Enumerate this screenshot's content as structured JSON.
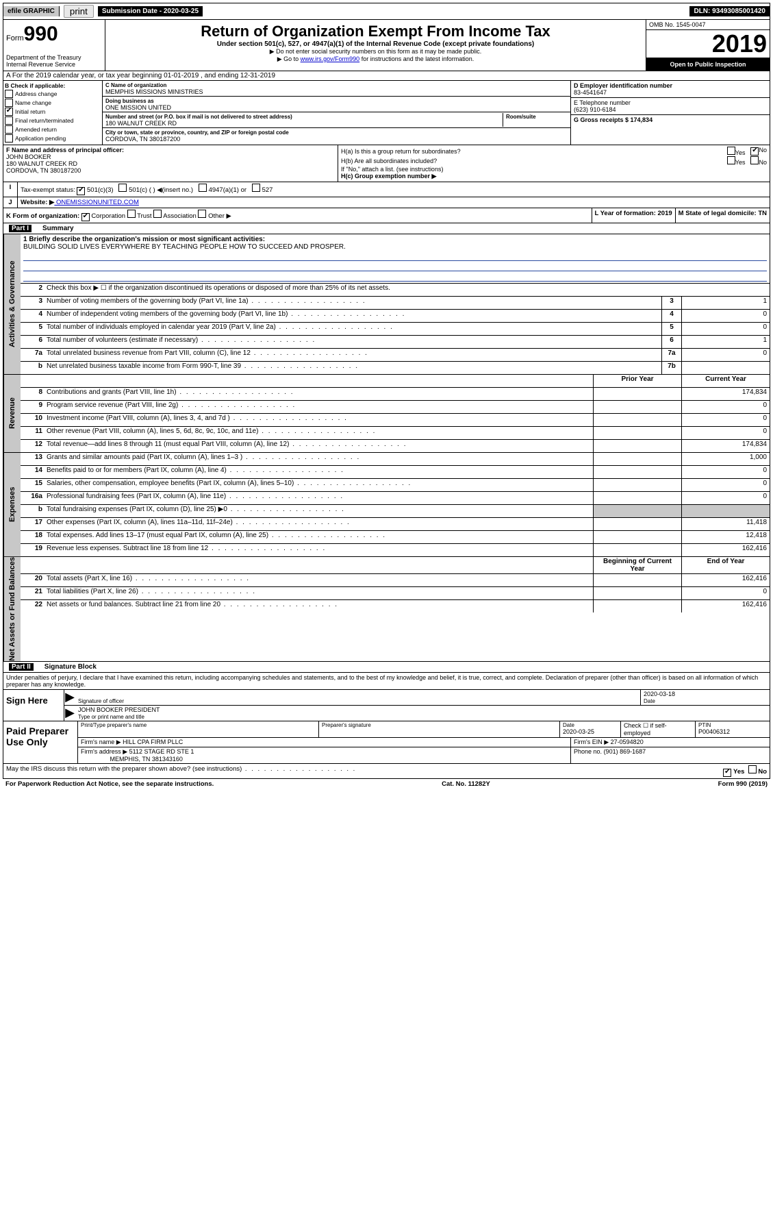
{
  "top": {
    "efile": "efile GRAPHIC",
    "print": "print",
    "sub_label": "Submission Date - 2020-03-25",
    "dln": "DLN: 93493085001420"
  },
  "hdr": {
    "form": "Form",
    "num": "990",
    "dept": "Department of the Treasury Internal Revenue Service",
    "title": "Return of Organization Exempt From Income Tax",
    "sub": "Under section 501(c), 527, or 4947(a)(1) of the Internal Revenue Code (except private foundations)",
    "note1": "▶ Do not enter social security numbers on this form as it may be made public.",
    "note2a": "▶ Go to ",
    "note2link": "www.irs.gov/Form990",
    "note2b": " for instructions and the latest information.",
    "omb": "OMB No. 1545-0047",
    "year": "2019",
    "otp": "Open to Public Inspection"
  },
  "rowA": "A For the 2019 calendar year, or tax year beginning 01-01-2019    , and ending 12-31-2019",
  "entB": {
    "hdr": "B Check if applicable:",
    "items": [
      "Address change",
      "Name change",
      "Initial return",
      "Final return/terminated",
      "Amended return",
      "Application pending"
    ],
    "checked": [
      false,
      false,
      true,
      false,
      false,
      false
    ]
  },
  "entC": {
    "name_lbl": "C Name of organization",
    "name": "MEMPHIS MISSIONS MINISTRIES",
    "dba_lbl": "Doing business as",
    "dba": "ONE MISSION UNITED",
    "addr_lbl": "Number and street (or P.O. box if mail is not delivered to street address)",
    "suite_lbl": "Room/suite",
    "addr": "180 WALNUT CREEK RD",
    "city_lbl": "City or town, state or province, country, and ZIP or foreign postal code",
    "city": "CORDOVA, TN  380187200"
  },
  "entR": {
    "d_lbl": "D Employer identification number",
    "d_val": "83-4541647",
    "e_lbl": "E Telephone number",
    "e_val": "(623) 910-6184",
    "g_lbl": "G Gross receipts $ 174,834"
  },
  "fhi": {
    "f_lbl": "F  Name and address of principal officer:",
    "f_name": "JOHN BOOKER",
    "f_addr": "180 WALNUT CREEK RD\nCORDOVA, TN  380187200",
    "ha": "H(a)  Is this a group return for subordinates?",
    "hb": "H(b)  Are all subordinates included?",
    "hb_note": "If \"No,\" attach a list. (see instructions)",
    "hc": "H(c)  Group exemption number ▶",
    "yes": "Yes",
    "no": "No"
  },
  "rowI": {
    "lbl": "Tax-exempt status:",
    "o1": "501(c)(3)",
    "o2": "501(c) (   ) ◀(insert no.)",
    "o3": "4947(a)(1) or",
    "o4": "527"
  },
  "rowJ": {
    "lbl": "Website: ▶",
    "val": "  ONEMISSIONUNITED.COM"
  },
  "rowK": {
    "l": "K Form of organization:",
    "corp": "Corporation",
    "trust": "Trust",
    "assoc": "Association",
    "other": "Other ▶",
    "ly": "L Year of formation: 2019",
    "ms": "M State of legal domicile: TN"
  },
  "p1": {
    "num": "Part I",
    "title": "Summary"
  },
  "p1r": {
    "r1_lbl": "1  Briefly describe the organization's mission or most significant activities:",
    "r1_val": "BUILDING SOLID LIVES EVERYWHERE BY TEACHING PEOPLE HOW TO SUCCEED AND PROSPER.",
    "r2": "Check this box ▶ ☐  if the organization discontinued its operations or disposed of more than 25% of its net assets.",
    "rows": [
      {
        "n": "3",
        "d": "Number of voting members of the governing body (Part VI, line 1a)",
        "b": "3",
        "v": "1"
      },
      {
        "n": "4",
        "d": "Number of independent voting members of the governing body (Part VI, line 1b)",
        "b": "4",
        "v": "0"
      },
      {
        "n": "5",
        "d": "Total number of individuals employed in calendar year 2019 (Part V, line 2a)",
        "b": "5",
        "v": "0"
      },
      {
        "n": "6",
        "d": "Total number of volunteers (estimate if necessary)",
        "b": "6",
        "v": "1"
      },
      {
        "n": "7a",
        "d": "Total unrelated business revenue from Part VIII, column (C), line 12",
        "b": "7a",
        "v": "0"
      },
      {
        "n": "b",
        "d": "Net unrelated business taxable income from Form 990-T, line 39",
        "b": "7b",
        "v": ""
      }
    ],
    "hdr_prior": "Prior Year",
    "hdr_curr": "Current Year",
    "rev": [
      {
        "n": "8",
        "d": "Contributions and grants (Part VIII, line 1h)",
        "p": "",
        "c": "174,834"
      },
      {
        "n": "9",
        "d": "Program service revenue (Part VIII, line 2g)",
        "p": "",
        "c": "0"
      },
      {
        "n": "10",
        "d": "Investment income (Part VIII, column (A), lines 3, 4, and 7d )",
        "p": "",
        "c": "0"
      },
      {
        "n": "11",
        "d": "Other revenue (Part VIII, column (A), lines 5, 6d, 8c, 9c, 10c, and 11e)",
        "p": "",
        "c": "0"
      },
      {
        "n": "12",
        "d": "Total revenue—add lines 8 through 11 (must equal Part VIII, column (A), line 12)",
        "p": "",
        "c": "174,834"
      }
    ],
    "exp": [
      {
        "n": "13",
        "d": "Grants and similar amounts paid (Part IX, column (A), lines 1–3 )",
        "p": "",
        "c": "1,000"
      },
      {
        "n": "14",
        "d": "Benefits paid to or for members (Part IX, column (A), line 4)",
        "p": "",
        "c": "0"
      },
      {
        "n": "15",
        "d": "Salaries, other compensation, employee benefits (Part IX, column (A), lines 5–10)",
        "p": "",
        "c": "0"
      },
      {
        "n": "16a",
        "d": "Professional fundraising fees (Part IX, column (A), line 11e)",
        "p": "",
        "c": "0"
      },
      {
        "n": "b",
        "d": "Total fundraising expenses (Part IX, column (D), line 25) ▶0",
        "p": "shade",
        "c": "shade"
      },
      {
        "n": "17",
        "d": "Other expenses (Part IX, column (A), lines 11a–11d, 11f–24e)",
        "p": "",
        "c": "11,418"
      },
      {
        "n": "18",
        "d": "Total expenses. Add lines 13–17 (must equal Part IX, column (A), line 25)",
        "p": "",
        "c": "12,418"
      },
      {
        "n": "19",
        "d": "Revenue less expenses. Subtract line 18 from line 12",
        "p": "",
        "c": "162,416"
      }
    ],
    "hdr_beg": "Beginning of Current Year",
    "hdr_end": "End of Year",
    "na": [
      {
        "n": "20",
        "d": "Total assets (Part X, line 16)",
        "p": "",
        "c": "162,416"
      },
      {
        "n": "21",
        "d": "Total liabilities (Part X, line 26)",
        "p": "",
        "c": "0"
      },
      {
        "n": "22",
        "d": "Net assets or fund balances. Subtract line 21 from line 20",
        "p": "",
        "c": "162,416"
      }
    ]
  },
  "p2": {
    "num": "Part II",
    "title": "Signature Block"
  },
  "sig": {
    "decl": "Under penalties of perjury, I declare that I have examined this return, including accompanying schedules and statements, and to the best of my knowledge and belief, it is true, correct, and complete. Declaration of preparer (other than officer) is based on all information of which preparer has any knowledge.",
    "sign_here": "Sign Here",
    "sig_lbl": "Signature of officer",
    "date_lbl": "Date",
    "date": "2020-03-18",
    "name": "JOHN BOOKER PRESIDENT",
    "name_lbl": "Type or print name and title"
  },
  "prep": {
    "title": "Paid Preparer Use Only",
    "pt_lbl": "Print/Type preparer's name",
    "ps_lbl": "Preparer's signature",
    "d_lbl": "Date",
    "d": "2020-03-25",
    "chk": "Check ☐ if self-employed",
    "ptin_lbl": "PTIN",
    "ptin": "P00406312",
    "fn_lbl": "Firm's name   ▶",
    "fn": "HILL CPA FIRM PLLC",
    "fe_lbl": "Firm's EIN ▶",
    "fe": "27-0594820",
    "fa_lbl": "Firm's address ▶",
    "fa": "5112 STAGE RD STE 1",
    "fa2": "MEMPHIS, TN  381343160",
    "ph_lbl": "Phone no.",
    "ph": "(901) 869-1687"
  },
  "foot": {
    "q": "May the IRS discuss this return with the preparer shown above? (see instructions)",
    "yes": "Yes",
    "no": "No",
    "pra": "For Paperwork Reduction Act Notice, see the separate instructions.",
    "cat": "Cat. No. 11282Y",
    "form": "Form 990 (2019)"
  },
  "side": {
    "ag": "Activities & Governance",
    "rev": "Revenue",
    "exp": "Expenses",
    "na": "Net Assets or Fund Balances"
  }
}
